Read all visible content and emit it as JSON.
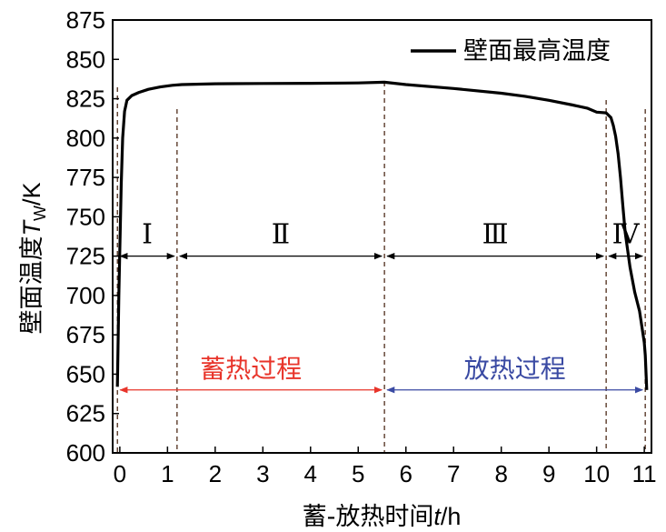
{
  "chart_data": {
    "type": "line",
    "ylabel_prefix": "壁面温度",
    "ylabel_var": "T",
    "ylabel_sub": "W",
    "ylabel_unit": "/K",
    "xlabel_prefix": "蓄-放热时间",
    "xlabel_var": "t",
    "xlabel_unit": "/h",
    "xlim": [
      -0.15,
      11.15
    ],
    "ylim": [
      600,
      875
    ],
    "xticks": [
      0,
      1,
      2,
      3,
      4,
      5,
      6,
      7,
      8,
      9,
      10,
      11
    ],
    "yticks": [
      600,
      625,
      650,
      675,
      700,
      725,
      750,
      775,
      800,
      825,
      850,
      875
    ],
    "legend_position": "top-right",
    "series": [
      {
        "name": "壁面最高温度",
        "color": "#000000",
        "x": [
          -0.05,
          -0.02,
          0.0,
          0.03,
          0.06,
          0.1,
          0.15,
          0.25,
          0.4,
          0.6,
          0.85,
          1.1,
          1.3,
          2.0,
          3.0,
          4.0,
          5.0,
          5.55,
          6.0,
          7.0,
          8.0,
          8.5,
          9.0,
          9.5,
          9.8,
          10.0,
          10.2,
          10.3,
          10.35,
          10.4,
          10.45,
          10.5,
          10.55,
          10.6,
          10.7,
          10.8,
          10.9,
          10.95,
          11.0,
          11.02,
          11.05
        ],
        "y": [
          642,
          700,
          730,
          770,
          800,
          817,
          824,
          827,
          829,
          831,
          832.5,
          833.5,
          834,
          834.5,
          834.7,
          834.8,
          835,
          835.5,
          834,
          831.5,
          828.5,
          826.5,
          824,
          821,
          819,
          816.5,
          816,
          813,
          808,
          801,
          790,
          775,
          757,
          740,
          718,
          702,
          690,
          680,
          670,
          662,
          640
        ]
      }
    ],
    "boundary_lines_x": [
      -0.05,
      1.2,
      5.55,
      10.2,
      11.02
    ],
    "stages": [
      {
        "label": "Ⅰ",
        "x_from": -0.05,
        "x_to": 1.2
      },
      {
        "label": "Ⅱ",
        "x_from": 1.2,
        "x_to": 5.55
      },
      {
        "label": "Ⅲ",
        "x_from": 5.55,
        "x_to": 10.2
      },
      {
        "label": "Ⅳ",
        "x_from": 10.2,
        "x_to": 11.02
      }
    ],
    "stage_arrow_y": 725,
    "processes": [
      {
        "label": "蓄热过程",
        "x_from": -0.05,
        "x_to": 5.55,
        "color": "#e8342a"
      },
      {
        "label": "放热过程",
        "x_from": 5.55,
        "x_to": 11.02,
        "color": "#3a4aa3"
      }
    ],
    "process_arrow_y": 640
  }
}
